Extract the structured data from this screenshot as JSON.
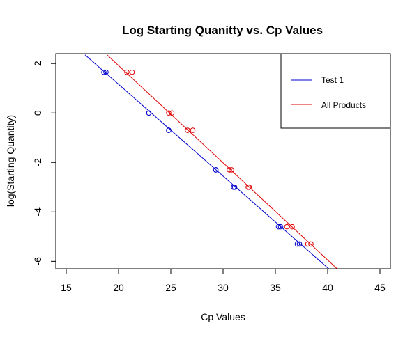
{
  "chart_data": {
    "type": "scatter",
    "title": "Log Starting Quanitty vs. Cp Values",
    "xlabel": "Cp Values",
    "ylabel": "log(Starting Quantity)",
    "xlim": [
      14,
      46
    ],
    "ylim": [
      -6.3,
      2.4
    ],
    "xticks": [
      15,
      20,
      25,
      30,
      35,
      40,
      45
    ],
    "yticks": [
      -6,
      -4,
      -2,
      0,
      2
    ],
    "legend_position": "top-right",
    "series": [
      {
        "name": "Test 1",
        "color": "#0000CD",
        "points": [
          {
            "x": 18.6,
            "y": 1.65
          },
          {
            "x": 18.8,
            "y": 1.65
          },
          {
            "x": 22.9,
            "y": 0.0
          },
          {
            "x": 22.9,
            "y": 0.0
          },
          {
            "x": 24.8,
            "y": -0.7
          },
          {
            "x": 24.8,
            "y": -0.7
          },
          {
            "x": 29.3,
            "y": -2.3
          },
          {
            "x": 29.3,
            "y": -2.3
          },
          {
            "x": 31.0,
            "y": -3.0
          },
          {
            "x": 31.1,
            "y": -3.0
          },
          {
            "x": 35.3,
            "y": -4.6
          },
          {
            "x": 35.5,
            "y": -4.6
          },
          {
            "x": 37.1,
            "y": -5.3
          },
          {
            "x": 37.3,
            "y": -5.3
          }
        ],
        "fit": {
          "x1": 16.8,
          "y1": 2.35,
          "x2": 40.1,
          "y2": -6.3
        }
      },
      {
        "name": "All Products",
        "color": "#E00000",
        "points": [
          {
            "x": 20.8,
            "y": 1.65
          },
          {
            "x": 21.3,
            "y": 1.65
          },
          {
            "x": 24.8,
            "y": 0.0
          },
          {
            "x": 25.1,
            "y": 0.0
          },
          {
            "x": 26.6,
            "y": -0.7
          },
          {
            "x": 27.1,
            "y": -0.7
          },
          {
            "x": 30.6,
            "y": -2.3
          },
          {
            "x": 30.8,
            "y": -2.3
          },
          {
            "x": 32.4,
            "y": -3.0
          },
          {
            "x": 32.5,
            "y": -3.0
          },
          {
            "x": 36.1,
            "y": -4.6
          },
          {
            "x": 36.6,
            "y": -4.6
          },
          {
            "x": 38.1,
            "y": -5.3
          },
          {
            "x": 38.4,
            "y": -5.3
          }
        ],
        "fit": {
          "x1": 18.9,
          "y1": 2.35,
          "x2": 40.9,
          "y2": -6.3
        }
      }
    ]
  }
}
